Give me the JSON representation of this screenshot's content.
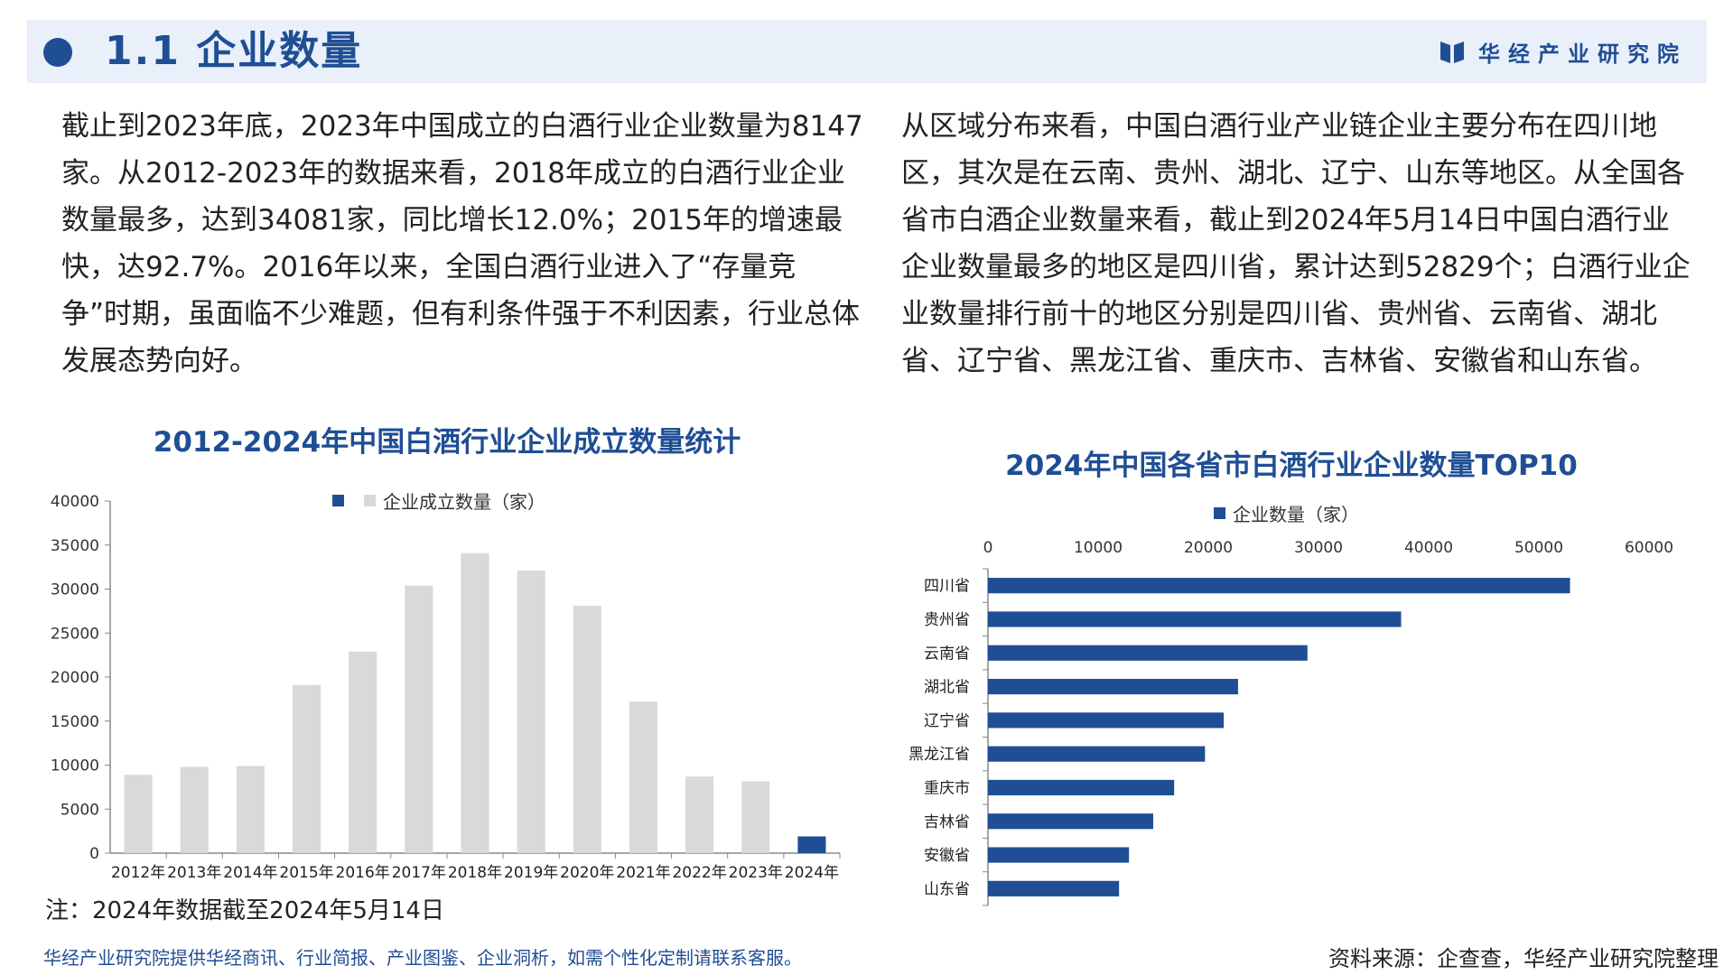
{
  "header": {
    "title": "1.1  企业数量",
    "brand": "华经产业研究院",
    "brand_icon": "book-logo-icon",
    "accent_color": "#1f4e94",
    "band_color": "#e9f0fa"
  },
  "text": {
    "left": "截止到2023年底，2023年中国成立的白酒行业企业数量为8147家。从2012-2023年的数据来看，2018年成立的白酒行业企业数量最多，达到34081家，同比增长12.0%；2015年的增速最快，达92.7%。2016年以来，全国白酒行业进入了“存量竞争”时期，虽面临不少难题，但有利条件强于不利因素，行业总体发展态势向好。",
    "right": "从区域分布来看，中国白酒行业产业链企业主要分布在四川地区，其次是在云南、贵州、湖北、辽宁、山东等地区。从全国各省市白酒企业数量来看，截止到2024年5月14日中国白酒行业企业数量最多的地区是四川省，累计达到52829个；白酒行业企业数量排行前十的地区分别是四川省、贵州省、云南省、湖北省、辽宁省、黑龙江省、重庆市、吉林省、安徽省和山东省。"
  },
  "chart_data": [
    {
      "type": "bar",
      "title": "2012-2024年中国白酒行业企业成立数量统计",
      "xlabel": "",
      "ylabel": "",
      "categories": [
        "2012年",
        "2013年",
        "2014年",
        "2015年",
        "2016年",
        "2017年",
        "2018年",
        "2019年",
        "2020年",
        "2021年",
        "2022年",
        "2023年",
        "2024年"
      ],
      "series": [
        {
          "name": "企业成立数量（家）",
          "values": [
            8900,
            9800,
            9900,
            19100,
            22900,
            30400,
            34081,
            32100,
            28100,
            17200,
            8700,
            8147,
            1900
          ],
          "color": "#d9d9d9",
          "highlight_color": "#1f4e94",
          "highlight_index": 12
        }
      ],
      "ylim": [
        0,
        40000
      ],
      "yticks": [
        0,
        5000,
        10000,
        15000,
        20000,
        25000,
        30000,
        35000,
        40000
      ],
      "grid": false,
      "legend": "top"
    },
    {
      "type": "bar",
      "orientation": "horizontal",
      "title": "2024年中国各省市白酒行业企业数量TOP10",
      "xlabel": "",
      "ylabel": "",
      "categories": [
        "四川省",
        "贵州省",
        "云南省",
        "湖北省",
        "辽宁省",
        "黑龙江省",
        "重庆市",
        "吉林省",
        "安徽省",
        "山东省"
      ],
      "series": [
        {
          "name": "企业数量（家）",
          "values": [
            52829,
            37500,
            29000,
            22700,
            21400,
            19700,
            16900,
            15000,
            12800,
            11900
          ],
          "color": "#1f4e94"
        }
      ],
      "xlim": [
        0,
        60000
      ],
      "xticks": [
        0,
        10000,
        20000,
        30000,
        40000,
        50000,
        60000
      ],
      "grid": false,
      "legend": "top"
    }
  ],
  "note": "注：2024年数据截至2024年5月14日",
  "footer": {
    "left": "华经产业研究院提供华经商讯、行业简报、产业图鉴、企业洞析，如需个性化定制请联系客服。",
    "right": "资料来源：企查查，华经产业研究院整理"
  }
}
